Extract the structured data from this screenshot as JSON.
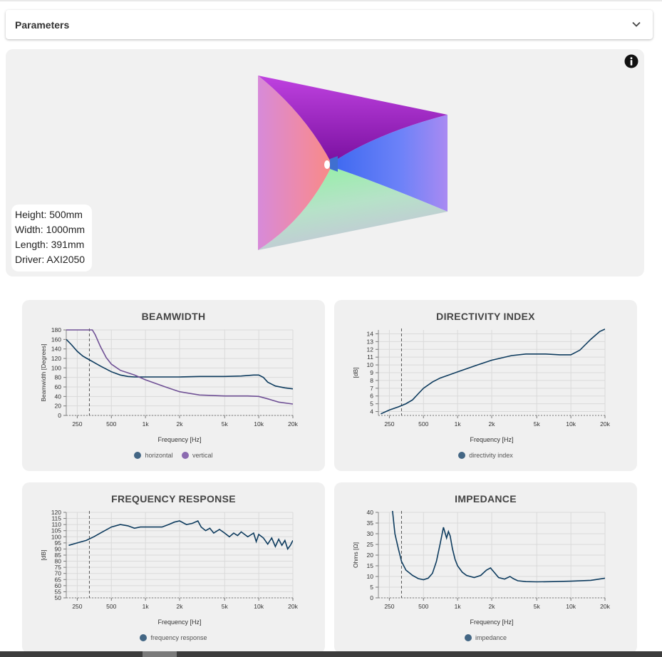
{
  "params": {
    "title": "Parameters"
  },
  "viewer": {
    "dims": [
      "Height: 500mm",
      "Width: 1000mm",
      "Length: 391mm",
      "Driver: AXI2050"
    ]
  },
  "colors": {
    "navy": "#0d3b5e",
    "purple": "#6f5095"
  },
  "chart_data": [
    {
      "type": "line",
      "title": "BEAMWIDTH",
      "xlabel": "Frequency [Hz]",
      "ylabel": "Beamwidth [Degrees]",
      "xscale": "log",
      "xlim": [
        200,
        20000
      ],
      "ylim": [
        0,
        180
      ],
      "xticks": [
        250,
        500,
        1000,
        2000,
        5000,
        10000,
        20000
      ],
      "xtick_labels": [
        "250",
        "500",
        "1k",
        "2k",
        "5k",
        "10k",
        "20k"
      ],
      "yticks": [
        0,
        20,
        40,
        60,
        80,
        100,
        120,
        140,
        160,
        180
      ],
      "ytick_labels": [
        "0",
        "20",
        "40",
        "60",
        "80",
        "100",
        "120",
        "140",
        "160",
        "180"
      ],
      "marker_x": 320,
      "series": [
        {
          "name": "horizontal",
          "color": "#0d3b5e",
          "x": [
            200,
            220,
            250,
            280,
            320,
            400,
            500,
            600,
            700,
            800,
            1000,
            1500,
            2000,
            3000,
            5000,
            7000,
            9000,
            10000,
            11000,
            12000,
            14000,
            17000,
            20000
          ],
          "y": [
            160,
            150,
            135,
            125,
            117,
            104,
            92,
            85,
            82,
            81,
            81,
            81,
            81,
            82,
            82,
            83,
            85,
            85,
            80,
            70,
            62,
            58,
            56
          ]
        },
        {
          "name": "vertical",
          "color": "#6f5095",
          "x": [
            200,
            300,
            340,
            360,
            400,
            450,
            500,
            600,
            800,
            1000,
            1500,
            2000,
            3000,
            5000,
            8000,
            10000,
            12000,
            15000,
            20000
          ],
          "y": [
            180,
            180,
            180,
            170,
            145,
            122,
            108,
            95,
            85,
            75,
            60,
            50,
            43,
            41,
            41,
            40,
            35,
            28,
            24
          ]
        }
      ]
    },
    {
      "type": "line",
      "title": "DIRECTIVITY INDEX",
      "xlabel": "Frequency [Hz]",
      "ylabel": "[dB]",
      "xscale": "log",
      "xlim": [
        200,
        20000
      ],
      "ylim": [
        3.5,
        14.5
      ],
      "xticks": [
        250,
        500,
        1000,
        2000,
        5000,
        10000,
        20000
      ],
      "xtick_labels": [
        "250",
        "500",
        "1k",
        "2k",
        "5k",
        "10k",
        "20k"
      ],
      "yticks": [
        4,
        5,
        6,
        7,
        8,
        9,
        10,
        11,
        12,
        13,
        14
      ],
      "ytick_labels": [
        "4",
        "5",
        "6",
        "7",
        "8",
        "9",
        "10",
        "11",
        "12",
        "13",
        "14"
      ],
      "marker_x": 320,
      "series": [
        {
          "name": "directivity index",
          "color": "#0d3b5e",
          "x": [
            210,
            250,
            300,
            350,
            400,
            450,
            500,
            600,
            700,
            800,
            1000,
            1500,
            2000,
            3000,
            4000,
            6000,
            8000,
            10000,
            12000,
            15000,
            18000,
            20000
          ],
          "y": [
            3.7,
            4.2,
            4.6,
            5.0,
            5.5,
            6.3,
            7.0,
            7.8,
            8.3,
            8.6,
            9.1,
            10.0,
            10.6,
            11.2,
            11.4,
            11.4,
            11.3,
            11.3,
            11.9,
            13.3,
            14.3,
            14.6
          ]
        }
      ]
    },
    {
      "type": "line",
      "title": "FREQUENCY RESPONSE",
      "xlabel": "Frequency [Hz]",
      "ylabel": "[dB]",
      "xscale": "log",
      "xlim": [
        200,
        20000
      ],
      "ylim": [
        50,
        120
      ],
      "xticks": [
        250,
        500,
        1000,
        2000,
        5000,
        10000,
        20000
      ],
      "xtick_labels": [
        "250",
        "500",
        "1k",
        "2k",
        "5k",
        "10k",
        "20k"
      ],
      "yticks": [
        50,
        55,
        60,
        65,
        70,
        75,
        80,
        85,
        90,
        95,
        100,
        105,
        110,
        115,
        120
      ],
      "ytick_labels": [
        "50",
        "55",
        "60",
        "65",
        "70",
        "75",
        "80",
        "85",
        "90",
        "95",
        "100",
        "105",
        "110",
        "115",
        "120"
      ],
      "marker_x": 320,
      "series": [
        {
          "name": "frequency response",
          "color": "#0d3b5e",
          "x": [
            210,
            250,
            300,
            350,
            400,
            500,
            600,
            700,
            800,
            900,
            1000,
            1200,
            1400,
            1600,
            1800,
            2000,
            2300,
            2600,
            2900,
            3100,
            3400,
            3700,
            4000,
            4500,
            5000,
            5500,
            6000,
            6500,
            7000,
            8000,
            9000,
            9500,
            10000,
            11000,
            12000,
            13000,
            14000,
            15000,
            16000,
            17000,
            18000,
            19000,
            20000
          ],
          "y": [
            93,
            95,
            97,
            100,
            103,
            108,
            110,
            109,
            107,
            108,
            108,
            108,
            108,
            110,
            112,
            113,
            110,
            111,
            113,
            108,
            105,
            107,
            103,
            106,
            103,
            100,
            103,
            101,
            104,
            100,
            103,
            96,
            102,
            99,
            94,
            99,
            92,
            98,
            93,
            97,
            90,
            93,
            97
          ]
        }
      ]
    },
    {
      "type": "line",
      "title": "IMPEDANCE",
      "xlabel": "Frequency [Hz]",
      "ylabel": "Ohms [Ω]",
      "xscale": "log",
      "xlim": [
        200,
        20000
      ],
      "ylim": [
        0,
        40
      ],
      "xticks": [
        250,
        500,
        1000,
        2000,
        5000,
        10000,
        20000
      ],
      "xtick_labels": [
        "250",
        "500",
        "1k",
        "2k",
        "5k",
        "10k",
        "20k"
      ],
      "yticks": [
        0,
        5,
        10,
        15,
        20,
        25,
        30,
        35,
        40
      ],
      "ytick_labels": [
        "0",
        "5",
        "10",
        "15",
        "20",
        "25",
        "30",
        "35",
        "40"
      ],
      "marker_x": 320,
      "series": [
        {
          "name": "impedance",
          "color": "#0d3b5e",
          "x": [
            265,
            280,
            300,
            320,
            350,
            400,
            450,
            500,
            550,
            600,
            650,
            700,
            750,
            800,
            830,
            860,
            900,
            950,
            1000,
            1100,
            1200,
            1400,
            1600,
            1800,
            1950,
            2100,
            2300,
            2600,
            2900,
            3100,
            3400,
            4000,
            5000,
            7000,
            10000,
            15000,
            20000
          ],
          "y": [
            42,
            30,
            23,
            17,
            13,
            10.5,
            9,
            8.5,
            9.2,
            11.5,
            17,
            25,
            33,
            28,
            31,
            29,
            23,
            18,
            15,
            12,
            10.5,
            9.5,
            10.5,
            13,
            14,
            12,
            9.5,
            8.8,
            10,
            9,
            8,
            7.6,
            7.5,
            7.6,
            7.8,
            8.2,
            9.2
          ]
        }
      ]
    }
  ]
}
